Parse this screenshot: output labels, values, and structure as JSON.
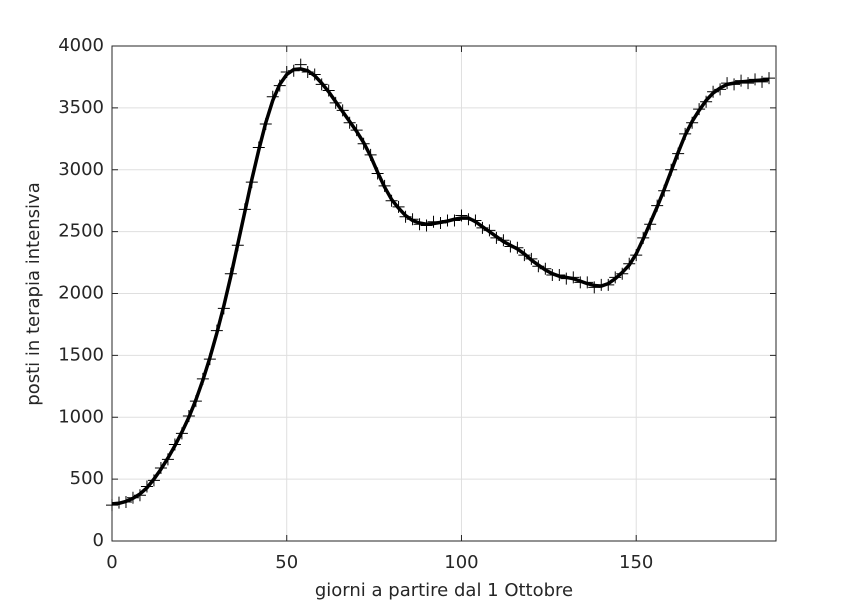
{
  "chart_data": {
    "type": "line",
    "xlabel": "giorni a partire dal 1 Ottobre",
    "ylabel": "posti in terapia intensiva",
    "x": [
      0,
      2,
      4,
      6,
      8,
      10,
      12,
      14,
      16,
      18,
      20,
      22,
      24,
      26,
      28,
      30,
      32,
      34,
      36,
      38,
      40,
      42,
      44,
      46,
      48,
      50,
      52,
      54,
      56,
      58,
      60,
      62,
      64,
      66,
      68,
      70,
      72,
      74,
      76,
      78,
      80,
      82,
      84,
      86,
      88,
      90,
      92,
      94,
      96,
      98,
      100,
      102,
      104,
      106,
      108,
      110,
      112,
      114,
      116,
      118,
      120,
      122,
      124,
      126,
      128,
      130,
      132,
      134,
      136,
      138,
      140,
      142,
      144,
      146,
      148,
      150,
      152,
      154,
      156,
      158,
      160,
      162,
      164,
      166,
      168,
      170,
      172,
      174,
      176,
      178,
      180,
      182,
      184,
      186,
      188
    ],
    "series": [
      {
        "style": "marker",
        "color": "#000000",
        "values": [
          290,
          310,
          315,
          350,
          370,
          440,
          490,
          590,
          660,
          780,
          870,
          1010,
          1130,
          1310,
          1470,
          1700,
          1880,
          2160,
          2390,
          2680,
          2900,
          3180,
          3370,
          3590,
          3680,
          3790,
          3800,
          3850,
          3790,
          3770,
          3690,
          3640,
          3540,
          3480,
          3380,
          3320,
          3210,
          3120,
          2970,
          2870,
          2750,
          2700,
          2620,
          2600,
          2560,
          2550,
          2580,
          2570,
          2590,
          2590,
          2630,
          2600,
          2590,
          2530,
          2510,
          2450,
          2430,
          2380,
          2370,
          2310,
          2280,
          2220,
          2200,
          2150,
          2150,
          2120,
          2130,
          2090,
          2090,
          2050,
          2070,
          2070,
          2130,
          2160,
          2240,
          2310,
          2450,
          2560,
          2710,
          2830,
          3000,
          3130,
          3290,
          3380,
          3490,
          3550,
          3630,
          3650,
          3700,
          3690,
          3720,
          3700,
          3730,
          3710,
          3740
        ]
      },
      {
        "style": "line",
        "color": "#000000",
        "values": [
          300,
          305,
          320,
          345,
          380,
          430,
          500,
          580,
          670,
          770,
          880,
          1000,
          1140,
          1300,
          1480,
          1680,
          1900,
          2140,
          2400,
          2660,
          2920,
          3160,
          3380,
          3560,
          3690,
          3770,
          3810,
          3815,
          3800,
          3760,
          3700,
          3630,
          3550,
          3470,
          3390,
          3310,
          3220,
          3110,
          2980,
          2860,
          2760,
          2690,
          2630,
          2590,
          2570,
          2560,
          2565,
          2575,
          2585,
          2600,
          2610,
          2610,
          2580,
          2540,
          2500,
          2460,
          2420,
          2390,
          2360,
          2320,
          2270,
          2230,
          2190,
          2160,
          2140,
          2130,
          2120,
          2100,
          2080,
          2065,
          2060,
          2080,
          2120,
          2170,
          2230,
          2320,
          2440,
          2570,
          2700,
          2840,
          2990,
          3140,
          3280,
          3390,
          3480,
          3560,
          3620,
          3660,
          3690,
          3700,
          3710,
          3715,
          3720,
          3725,
          3730
        ]
      }
    ],
    "xlim": [
      0,
      190
    ],
    "ylim": [
      0,
      4000
    ],
    "xticks": [
      0,
      50,
      100,
      150
    ],
    "yticks": [
      0,
      500,
      1000,
      1500,
      2000,
      2500,
      3000,
      3500,
      4000
    ],
    "grid": true
  }
}
